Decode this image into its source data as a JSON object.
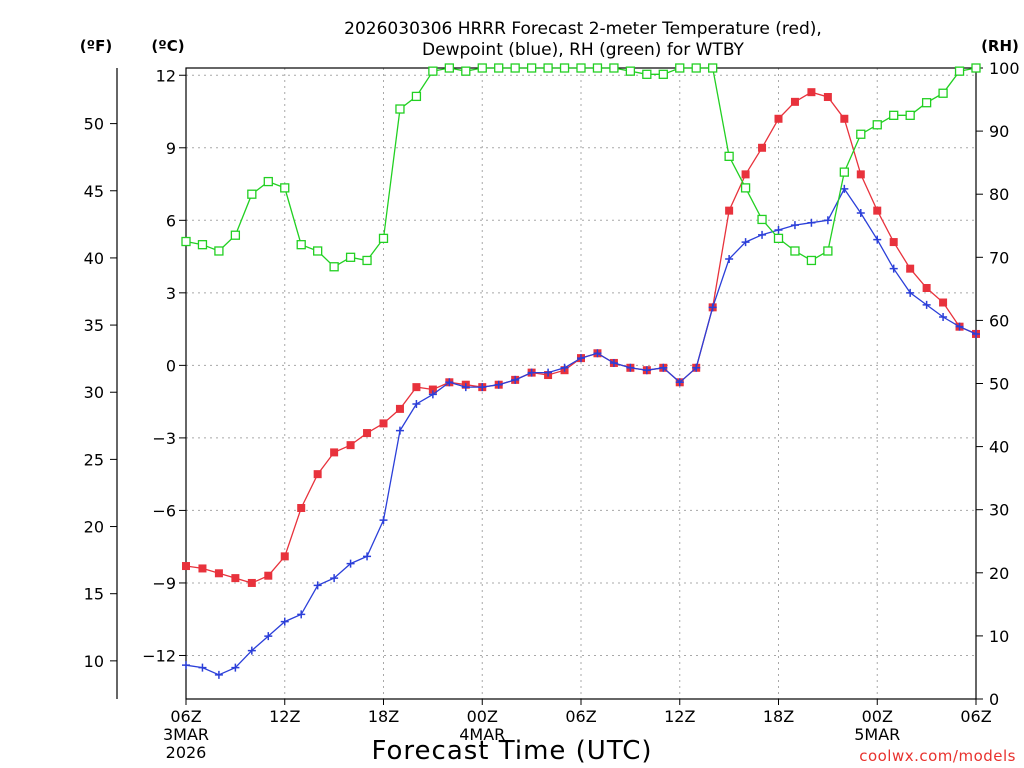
{
  "chart_data": {
    "type": "line",
    "title_lines": [
      "2026030306 HRRR Forecast 2-meter Temperature (red),",
      "Dewpoint (blue), RH (green) for WTBY"
    ],
    "xlabel": "Forecast Time (UTC)",
    "credit": "coolwx.com/models",
    "left_unit_f": "(ºF)",
    "left_unit_c": "(ºC)",
    "right_unit": "(RH)",
    "x_hours_range": [
      0,
      48
    ],
    "x_ticks": [
      {
        "hour": 0,
        "label": "06Z",
        "date_line1": "3MAR",
        "date_line2": "2026"
      },
      {
        "hour": 6,
        "label": "12Z"
      },
      {
        "hour": 12,
        "label": "18Z"
      },
      {
        "hour": 18,
        "label": "00Z",
        "date_line1": "4MAR"
      },
      {
        "hour": 24,
        "label": "06Z"
      },
      {
        "hour": 30,
        "label": "12Z"
      },
      {
        "hour": 36,
        "label": "18Z"
      },
      {
        "hour": 42,
        "label": "00Z",
        "date_line1": "5MAR"
      },
      {
        "hour": 48,
        "label": "06Z"
      }
    ],
    "y_c_range": [
      -13.8,
      12.3
    ],
    "y_c_ticks": [
      12,
      9,
      6,
      3,
      0,
      -3,
      -6,
      -9,
      -12
    ],
    "y_c_tick_labels": [
      "12",
      "9",
      "6",
      "3",
      "0",
      "−3",
      "−6",
      "−9",
      "−12"
    ],
    "y_f_ticks": [
      10,
      15,
      20,
      25,
      30,
      35,
      40,
      45,
      50
    ],
    "y_f_tick_labels": [
      "10",
      "15",
      "20",
      "25",
      "30",
      "35",
      "40",
      "45",
      "50"
    ],
    "y_rh_range": [
      0,
      100
    ],
    "y_rh_ticks": [
      0,
      10,
      20,
      30,
      40,
      50,
      60,
      70,
      80,
      90,
      100
    ],
    "y_rh_tick_labels": [
      "0",
      "10",
      "20",
      "30",
      "40",
      "50",
      "60",
      "70",
      "80",
      "90",
      "100"
    ],
    "grid": true,
    "series": [
      {
        "name": "2-meter Temperature",
        "unit": "C",
        "axis": "left",
        "color": "#e8323c",
        "marker": "filled-square",
        "values": [
          -8.3,
          -8.4,
          -8.6,
          -8.8,
          -9.0,
          -8.7,
          -7.9,
          -5.9,
          -4.5,
          -3.6,
          -3.3,
          -2.8,
          -2.4,
          -1.8,
          -0.9,
          -1.0,
          -0.7,
          -0.8,
          -0.9,
          -0.8,
          -0.6,
          -0.3,
          -0.4,
          -0.2,
          0.3,
          0.5,
          0.1,
          -0.1,
          -0.2,
          -0.1,
          -0.7,
          -0.1,
          2.4,
          6.4,
          7.9,
          9.0,
          10.2,
          10.9,
          11.3,
          11.1,
          10.2,
          7.9,
          6.4,
          5.1,
          4.0,
          3.2,
          2.6,
          1.6,
          1.3
        ]
      },
      {
        "name": "Dewpoint",
        "unit": "C",
        "axis": "left",
        "color": "#2b3fd9",
        "marker": "plus",
        "values": [
          -12.4,
          -12.5,
          -12.8,
          -12.5,
          -11.8,
          -11.2,
          -10.6,
          -10.3,
          -9.1,
          -8.8,
          -8.2,
          -7.9,
          -6.4,
          -2.7,
          -1.6,
          -1.2,
          -0.7,
          -0.9,
          -0.9,
          -0.8,
          -0.6,
          -0.3,
          -0.3,
          -0.1,
          0.3,
          0.5,
          0.1,
          -0.1,
          -0.2,
          -0.1,
          -0.7,
          -0.1,
          2.4,
          4.4,
          5.1,
          5.4,
          5.6,
          5.8,
          5.9,
          6.0,
          7.3,
          6.3,
          5.2,
          4.0,
          3.0,
          2.5,
          2.0,
          1.6,
          1.3
        ]
      },
      {
        "name": "Relative Humidity",
        "unit": "%",
        "axis": "right",
        "color": "#22d022",
        "marker": "open-square",
        "values": [
          72.5,
          72.0,
          71.0,
          73.5,
          80.0,
          82.0,
          81.0,
          72.0,
          71.0,
          68.5,
          70.0,
          69.5,
          73.0,
          93.5,
          95.5,
          99.5,
          100.0,
          99.5,
          100.0,
          100.0,
          100.0,
          100.0,
          100.0,
          100.0,
          100.0,
          100.0,
          100.0,
          99.5,
          99.0,
          99.0,
          100.0,
          100.0,
          100.0,
          86.0,
          81.0,
          76.0,
          73.0,
          71.0,
          69.5,
          71.0,
          83.5,
          89.5,
          91.0,
          92.5,
          92.5,
          94.5,
          96.0,
          99.5,
          100.0
        ]
      }
    ]
  }
}
